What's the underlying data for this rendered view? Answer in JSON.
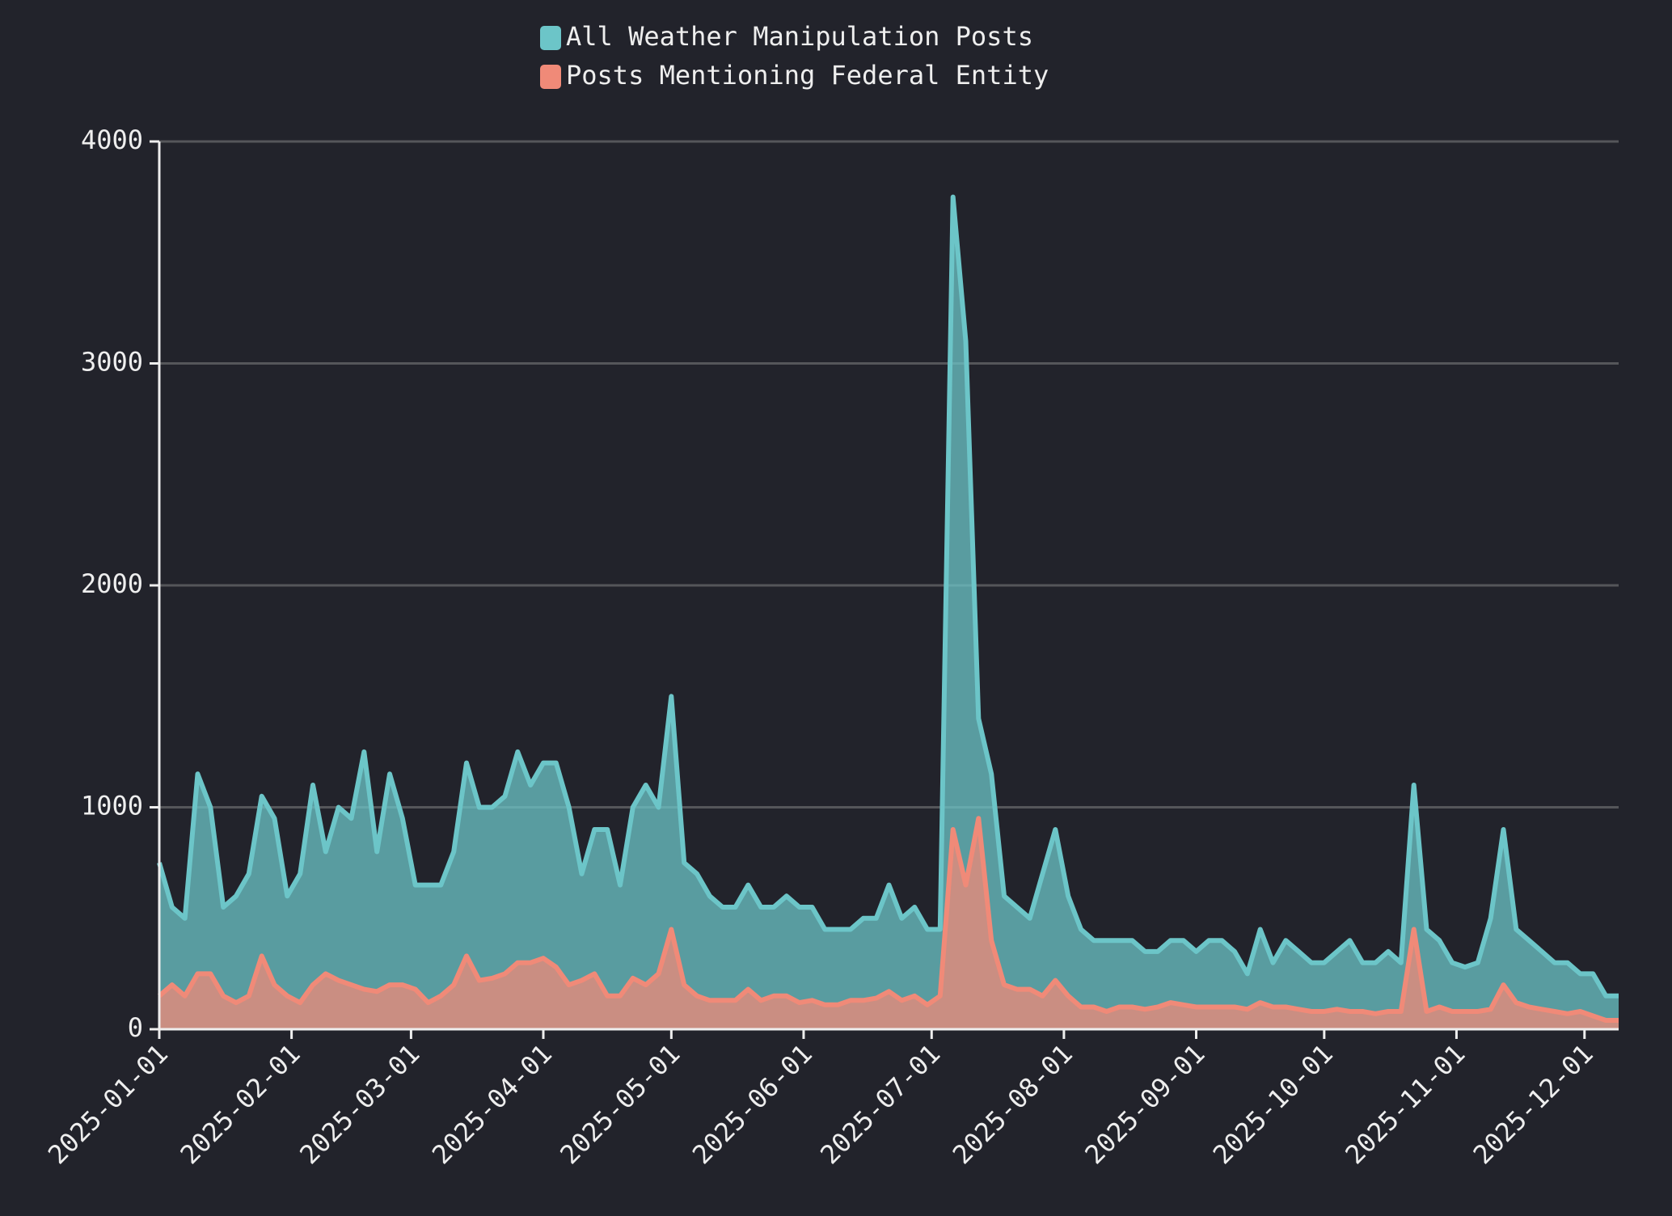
{
  "chart_data": {
    "type": "area",
    "x": [
      "2025-01-01",
      "2025-01-04",
      "2025-01-07",
      "2025-01-10",
      "2025-01-13",
      "2025-01-16",
      "2025-01-19",
      "2025-01-22",
      "2025-01-25",
      "2025-01-28",
      "2025-01-31",
      "2025-02-03",
      "2025-02-06",
      "2025-02-09",
      "2025-02-12",
      "2025-02-15",
      "2025-02-18",
      "2025-02-21",
      "2025-02-24",
      "2025-02-27",
      "2025-03-02",
      "2025-03-05",
      "2025-03-08",
      "2025-03-11",
      "2025-03-14",
      "2025-03-17",
      "2025-03-20",
      "2025-03-23",
      "2025-03-26",
      "2025-03-29",
      "2025-04-01",
      "2025-04-04",
      "2025-04-07",
      "2025-04-10",
      "2025-04-13",
      "2025-04-16",
      "2025-04-19",
      "2025-04-22",
      "2025-04-25",
      "2025-04-28",
      "2025-05-01",
      "2025-05-04",
      "2025-05-07",
      "2025-05-10",
      "2025-05-13",
      "2025-05-16",
      "2025-05-19",
      "2025-05-22",
      "2025-05-25",
      "2025-05-28",
      "2025-05-31",
      "2025-06-03",
      "2025-06-06",
      "2025-06-09",
      "2025-06-12",
      "2025-06-15",
      "2025-06-18",
      "2025-06-21",
      "2025-06-24",
      "2025-06-27",
      "2025-06-30",
      "2025-07-03",
      "2025-07-06",
      "2025-07-09",
      "2025-07-12",
      "2025-07-15",
      "2025-07-18",
      "2025-07-21",
      "2025-07-24",
      "2025-07-27",
      "2025-07-30",
      "2025-08-02",
      "2025-08-05",
      "2025-08-08",
      "2025-08-11",
      "2025-08-14",
      "2025-08-17",
      "2025-08-20",
      "2025-08-23",
      "2025-08-26",
      "2025-08-29",
      "2025-09-01",
      "2025-09-04",
      "2025-09-07",
      "2025-09-10",
      "2025-09-13",
      "2025-09-16",
      "2025-09-19",
      "2025-09-22",
      "2025-09-25",
      "2025-09-28",
      "2025-10-01",
      "2025-10-04",
      "2025-10-07",
      "2025-10-10",
      "2025-10-13",
      "2025-10-16",
      "2025-10-19",
      "2025-10-22",
      "2025-10-25",
      "2025-10-28",
      "2025-10-31",
      "2025-11-03",
      "2025-11-06",
      "2025-11-09",
      "2025-11-12",
      "2025-11-15",
      "2025-11-18",
      "2025-11-21",
      "2025-11-24",
      "2025-11-27",
      "2025-11-30",
      "2025-12-03",
      "2025-12-06",
      "2025-12-09"
    ],
    "series": [
      {
        "name": "All Weather Manipulation Posts",
        "color": "#6cc5c8",
        "values": [
          750,
          550,
          500,
          1150,
          1000,
          550,
          600,
          700,
          1050,
          950,
          600,
          700,
          1100,
          800,
          1000,
          950,
          1250,
          800,
          1150,
          950,
          650,
          650,
          650,
          800,
          1200,
          1000,
          1000,
          1050,
          1250,
          1100,
          1200,
          1200,
          1000,
          700,
          900,
          900,
          650,
          1000,
          1100,
          1000,
          1500,
          750,
          700,
          600,
          550,
          550,
          650,
          550,
          550,
          600,
          550,
          550,
          450,
          450,
          450,
          500,
          500,
          650,
          500,
          550,
          450,
          450,
          3750,
          3100,
          1400,
          1150,
          600,
          550,
          500,
          700,
          900,
          600,
          450,
          400,
          400,
          400,
          400,
          350,
          350,
          400,
          400,
          350,
          400,
          400,
          350,
          250,
          450,
          300,
          400,
          350,
          300,
          300,
          350,
          400,
          300,
          300,
          350,
          300,
          1100,
          450,
          400,
          300,
          280,
          300,
          500,
          900,
          450,
          400,
          350,
          300,
          300,
          250,
          250,
          150,
          150
        ]
      },
      {
        "name": "Posts Mentioning Federal Entity",
        "color": "#f08a78",
        "values": [
          150,
          200,
          150,
          250,
          250,
          150,
          120,
          150,
          330,
          200,
          150,
          120,
          200,
          250,
          220,
          200,
          180,
          170,
          200,
          200,
          180,
          120,
          150,
          200,
          330,
          220,
          230,
          250,
          300,
          300,
          320,
          280,
          200,
          220,
          250,
          150,
          150,
          230,
          200,
          250,
          450,
          200,
          150,
          130,
          130,
          130,
          180,
          130,
          150,
          150,
          120,
          130,
          110,
          110,
          130,
          130,
          140,
          170,
          130,
          150,
          110,
          150,
          900,
          650,
          950,
          400,
          200,
          180,
          180,
          150,
          220,
          150,
          100,
          100,
          80,
          100,
          100,
          90,
          100,
          120,
          110,
          100,
          100,
          100,
          100,
          90,
          120,
          100,
          100,
          90,
          80,
          80,
          90,
          80,
          80,
          70,
          80,
          80,
          450,
          80,
          100,
          80,
          80,
          80,
          90,
          200,
          120,
          100,
          90,
          80,
          70,
          80,
          60,
          40,
          40
        ]
      }
    ],
    "xlim": [
      "2025-01-01",
      "2025-12-09"
    ],
    "xticks": [
      "2025-01-01",
      "2025-02-01",
      "2025-03-01",
      "2025-04-01",
      "2025-05-01",
      "2025-06-01",
      "2025-07-01",
      "2025-08-01",
      "2025-09-01",
      "2025-10-01",
      "2025-11-01",
      "2025-12-01"
    ],
    "ylim": [
      0,
      4000
    ],
    "yticks": [
      0,
      1000,
      2000,
      3000,
      4000
    ],
    "grid": true,
    "legend": "top"
  }
}
